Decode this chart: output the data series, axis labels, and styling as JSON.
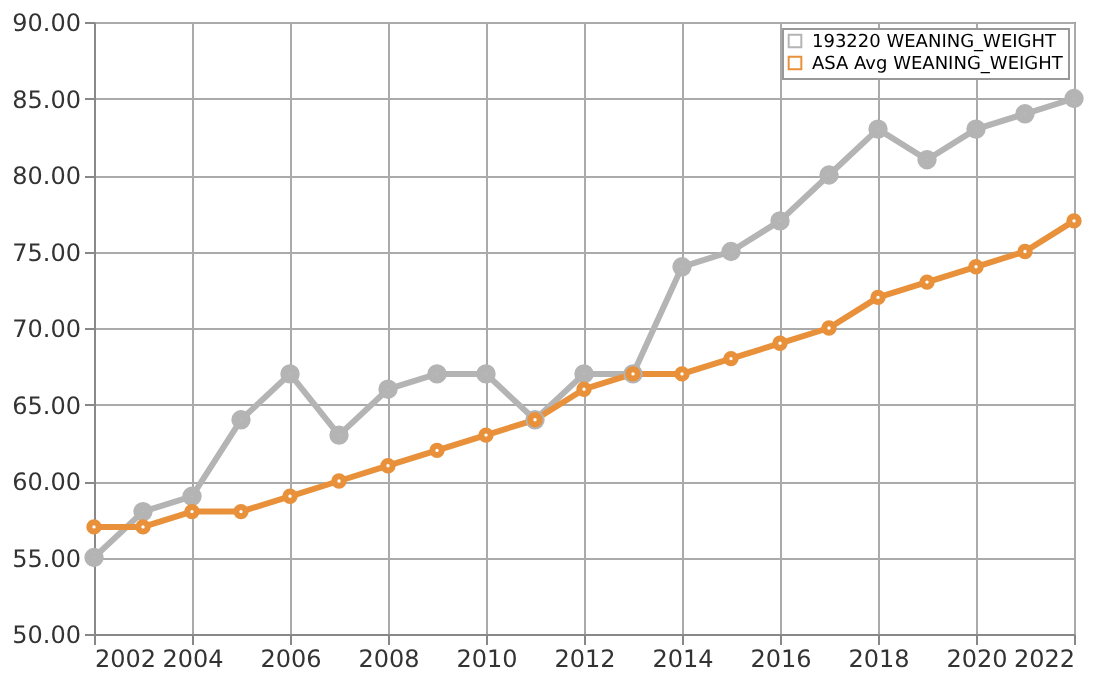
{
  "chart_data": {
    "type": "line",
    "x": [
      2002,
      2003,
      2004,
      2005,
      2006,
      2007,
      2008,
      2009,
      2010,
      2011,
      2012,
      2013,
      2014,
      2015,
      2016,
      2017,
      2018,
      2019,
      2020,
      2021,
      2022
    ],
    "series": [
      {
        "name": "193220 WEANING_WEIGHT",
        "color": "#b4b4b4",
        "values": [
          55,
          58,
          59,
          64,
          67,
          63,
          66,
          67,
          67,
          64,
          67,
          67,
          74,
          75,
          77,
          80,
          83,
          81,
          83,
          84,
          85
        ]
      },
      {
        "name": "ASA Avg WEANING_WEIGHT",
        "color": "#e8913a",
        "values": [
          57,
          57,
          58,
          58,
          59,
          60,
          61,
          62,
          63,
          64,
          66,
          67,
          67,
          68,
          69,
          70,
          72,
          73,
          74,
          75,
          77
        ]
      }
    ],
    "xlim": [
      2002,
      2022
    ],
    "xticks": [
      2002,
      2004,
      2006,
      2008,
      2010,
      2012,
      2014,
      2016,
      2018,
      2020,
      2022
    ],
    "ylim": [
      50,
      90
    ],
    "yticks": [
      {
        "value": 50,
        "label": "50.00"
      },
      {
        "value": 55,
        "label": "55.00"
      },
      {
        "value": 60,
        "label": "60.00"
      },
      {
        "value": 65,
        "label": "65.00"
      },
      {
        "value": 70,
        "label": "70.00"
      },
      {
        "value": 75,
        "label": "75.00"
      },
      {
        "value": 80,
        "label": "80.00"
      },
      {
        "value": 85,
        "label": "85.00"
      },
      {
        "value": 90,
        "label": "90.00"
      }
    ],
    "grid": true,
    "legend": "top right",
    "marker": "circle",
    "line_style": "solid"
  }
}
